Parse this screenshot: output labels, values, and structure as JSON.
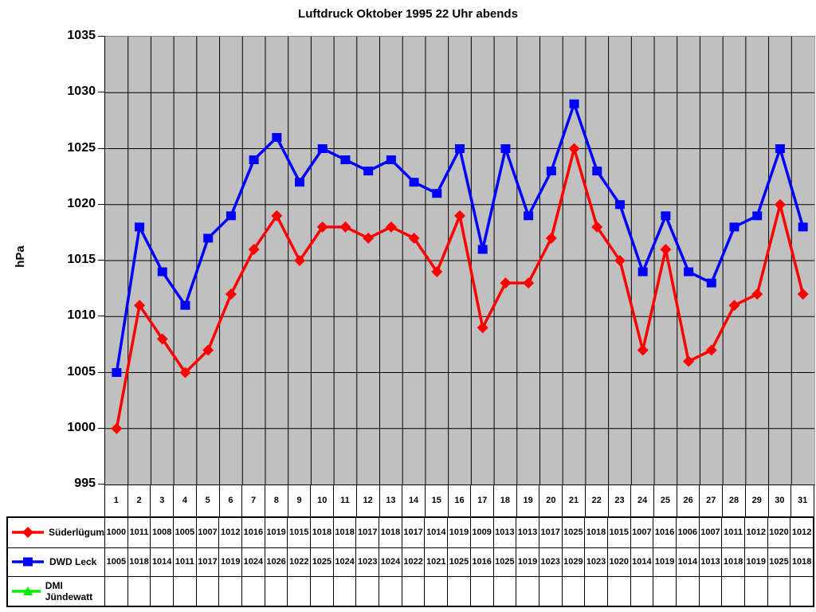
{
  "title": "Luftdruck Oktober 1995 22 Uhr abends",
  "y_axis": {
    "label": "hPa",
    "ticks": [
      1035,
      1030,
      1025,
      1020,
      1015,
      1010,
      1005,
      1000,
      995
    ]
  },
  "colors": {
    "plot_background": "#c0c0c0",
    "gridline": "#000000",
    "series_red": "#ff0000",
    "series_blue": "#0000ff",
    "series_green": "#00ee00"
  },
  "chart_data": {
    "type": "line",
    "title": "Luftdruck Oktober 1995 22 Uhr abends",
    "xlabel": "",
    "ylabel": "hPa",
    "ylim": [
      995,
      1035
    ],
    "ytick_step": 5,
    "grid": true,
    "plot_background": "#c0c0c0",
    "legend_position": "bottom-table",
    "categories": [
      1,
      2,
      3,
      4,
      5,
      6,
      7,
      8,
      9,
      10,
      11,
      12,
      13,
      14,
      15,
      16,
      17,
      18,
      19,
      20,
      21,
      22,
      23,
      24,
      25,
      26,
      27,
      28,
      29,
      30,
      31
    ],
    "series": [
      {
        "name": "Süderlügum",
        "color": "#ff0000",
        "marker": "diamond",
        "values": [
          1000,
          1011,
          1008,
          1005,
          1007,
          1012,
          1016,
          1019,
          1015,
          1018,
          1018,
          1017,
          1018,
          1017,
          1014,
          1019,
          1009,
          1013,
          1013,
          1017,
          1025,
          1018,
          1015,
          1007,
          1016,
          1006,
          1007,
          1011,
          1012,
          1020,
          1012
        ]
      },
      {
        "name": "DWD Leck",
        "color": "#0000ff",
        "marker": "square",
        "values": [
          1005,
          1018,
          1014,
          1011,
          1017,
          1019,
          1024,
          1026,
          1022,
          1025,
          1024,
          1023,
          1024,
          1022,
          1021,
          1025,
          1016,
          1025,
          1019,
          1023,
          1029,
          1023,
          1020,
          1014,
          1019,
          1014,
          1013,
          1018,
          1019,
          1025,
          1018
        ]
      },
      {
        "name": "DMI Jündewatt",
        "color": "#00ee00",
        "marker": "triangle",
        "values": []
      }
    ]
  }
}
